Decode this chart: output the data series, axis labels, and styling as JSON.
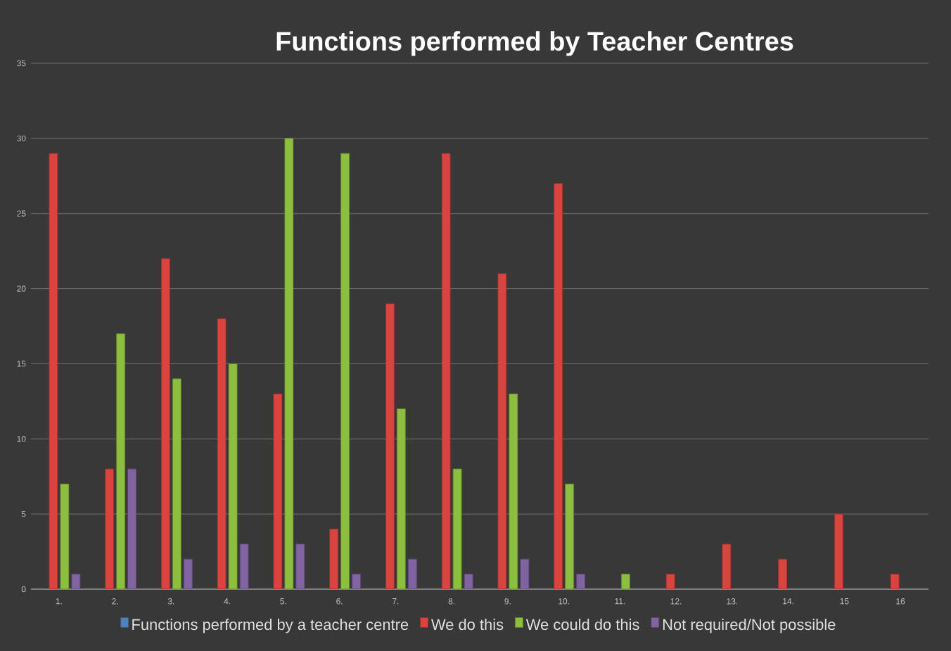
{
  "chart_data": {
    "type": "bar",
    "title": "Functions performed by Teacher Centres",
    "categories": [
      "1.",
      "2.",
      "3.",
      "4.",
      "5.",
      "6.",
      "7.",
      "8.",
      "9.",
      "10.",
      "11.",
      "12.",
      "13.",
      "14.",
      "15",
      "16"
    ],
    "series": [
      {
        "name": "Functions performed by a teacher centre",
        "color": "#4f81bd",
        "values": [
          null,
          null,
          null,
          null,
          null,
          null,
          null,
          null,
          null,
          null,
          null,
          null,
          null,
          null,
          null,
          null
        ]
      },
      {
        "name": "We do this",
        "color": "#d9443f",
        "values": [
          29,
          8,
          22,
          18,
          13,
          4,
          19,
          29,
          21,
          27,
          null,
          1,
          3,
          2,
          5,
          1
        ]
      },
      {
        "name": "We could do this",
        "color": "#8cbf3f",
        "values": [
          7,
          17,
          14,
          15,
          30,
          29,
          12,
          8,
          13,
          7,
          1,
          null,
          null,
          null,
          null,
          null
        ]
      },
      {
        "name": "Not required/Not possible",
        "color": "#8064a2",
        "values": [
          1,
          8,
          2,
          3,
          3,
          1,
          2,
          1,
          2,
          1,
          null,
          null,
          null,
          null,
          null,
          null
        ]
      }
    ],
    "ylim": [
      0,
      35
    ],
    "yticks": [
      0,
      5,
      10,
      15,
      20,
      25,
      30,
      35
    ],
    "grid": "y",
    "legend": "bottom"
  }
}
